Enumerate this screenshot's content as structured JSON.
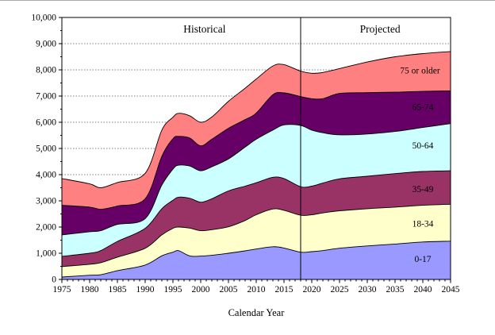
{
  "chart_data": {
    "type": "area",
    "stacked": true,
    "title": "",
    "xlabel": "Calendar Year",
    "ylabel": "",
    "xlim": [
      1975,
      2045
    ],
    "ylim": [
      0,
      10000
    ],
    "grid": "horizontal-dotted",
    "y_major_tick_step": 1000,
    "y_minor_tick_step": 500,
    "x_major_tick_step": 5,
    "x_minor_tick_step": 1,
    "x_tick_labels": [
      1975,
      1980,
      1985,
      1990,
      1995,
      2000,
      2005,
      2010,
      2015,
      2020,
      2025,
      2030,
      2035,
      2040,
      2045
    ],
    "y_tick_labels": [
      "0",
      "1,000",
      "2,000",
      "3,000",
      "4,000",
      "5,000",
      "6,000",
      "7,000",
      "8,000",
      "9,000",
      "10,000"
    ],
    "divider_year": 2018,
    "region_annotations": [
      {
        "text": "Historical",
        "year": 2000.7,
        "value": 9430
      },
      {
        "text": "Projected",
        "year": 2032.3,
        "value": 9430
      }
    ],
    "x": [
      1975,
      1980,
      1982,
      1985,
      1990,
      1993,
      1995,
      1996,
      1998,
      2000,
      2002,
      2005,
      2008,
      2010,
      2013,
      2015,
      2018,
      2020,
      2022,
      2025,
      2030,
      2035,
      2040,
      2045
    ],
    "series": [
      {
        "name": "0-17",
        "color": "#9999FF",
        "label_text_color": "#000000",
        "label_year": 2040,
        "label_value": 790,
        "values": [
          90,
          160,
          180,
          335,
          550,
          900,
          1040,
          1100,
          900,
          890,
          920,
          1000,
          1090,
          1160,
          1250,
          1200,
          1040,
          1060,
          1100,
          1190,
          1280,
          1350,
          1430,
          1460
        ]
      },
      {
        "name": "18-34",
        "color": "#FFFFCC",
        "label_text_color": "#000000",
        "label_year": 2040,
        "label_value": 2130,
        "values": [
          400,
          420,
          460,
          515,
          640,
          800,
          910,
          900,
          1060,
          970,
          980,
          1010,
          1160,
          1310,
          1440,
          1440,
          1410,
          1410,
          1440,
          1430,
          1420,
          1410,
          1400,
          1410
        ]
      },
      {
        "name": "35-49",
        "color": "#993366",
        "label_text_color": "#FFFFFF",
        "label_year": 2040,
        "label_value": 3450,
        "values": [
          390,
          420,
          460,
          600,
          760,
          1000,
          1070,
          1140,
          1140,
          1090,
          1180,
          1370,
          1310,
          1220,
          1210,
          1210,
          1090,
          1090,
          1140,
          1220,
          1240,
          1280,
          1290,
          1280
        ]
      },
      {
        "name": "50-64",
        "color": "#CCFFFF",
        "label_text_color": "#000000",
        "label_year": 2040,
        "label_value": 5120,
        "values": [
          820,
          820,
          760,
          650,
          370,
          900,
          1190,
          1220,
          1230,
          1200,
          1220,
          1220,
          1490,
          1660,
          1800,
          2050,
          2340,
          2140,
          1920,
          1680,
          1610,
          1610,
          1680,
          1800
        ]
      },
      {
        "name": "65-74",
        "color": "#660066",
        "label_text_color": "#FFFFFF",
        "label_year": 2040,
        "label_value": 6590,
        "values": [
          1130,
          940,
          820,
          700,
          760,
          1100,
          1160,
          1100,
          1070,
          950,
          1050,
          1170,
          1050,
          1000,
          1350,
          1220,
          1100,
          1200,
          1300,
          1580,
          1580,
          1500,
          1380,
          1250
        ]
      },
      {
        "name": "75 or older",
        "color": "#FF8080",
        "label_text_color": "#000000",
        "label_year": 2039.5,
        "label_value": 7990,
        "values": [
          1020,
          890,
          820,
          900,
          970,
          1000,
          820,
          880,
          850,
          900,
          850,
          1030,
          1200,
          1300,
          1100,
          1080,
          970,
          970,
          1000,
          950,
          1170,
          1350,
          1440,
          1500
        ]
      }
    ],
    "line_color": "#000000",
    "gridline_color": "#808080",
    "divider_color": "#000000"
  }
}
